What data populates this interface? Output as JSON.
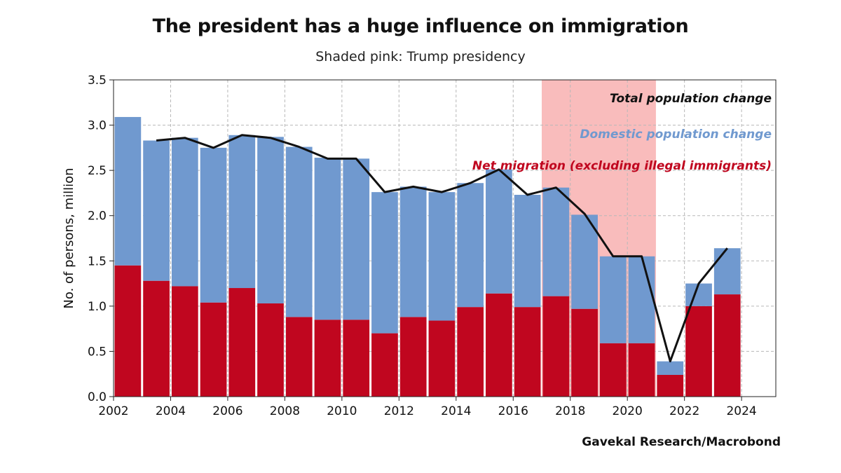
{
  "header": {
    "title": "The president has a huge influence on immigration",
    "subtitle": "Shaded pink: Trump presidency",
    "source": "Gavekal Research/Macrobond"
  },
  "colors": {
    "domestic": "#7099cf",
    "migration": "#c0061f",
    "total": "#111111",
    "shade": "#f9bcbc",
    "grid": "#b8b8b8"
  },
  "chart_data": {
    "type": "bar",
    "title": "The president has a huge influence on immigration",
    "subtitle": "Shaded pink: Trump presidency",
    "xlabel": "",
    "ylabel": "No. of persons, million",
    "ylim": [
      0,
      3.5
    ],
    "xlim": [
      2002,
      2025.2
    ],
    "grid": true,
    "x_ticks": [
      "2002",
      "2004",
      "2006",
      "2008",
      "2010",
      "2012",
      "2014",
      "2016",
      "2018",
      "2020",
      "2022",
      "2024"
    ],
    "y_ticks": [
      "0.0",
      "0.5",
      "1.0",
      "1.5",
      "2.0",
      "2.5",
      "3.0",
      "3.5"
    ],
    "shaded_region": {
      "label": "Trump presidency",
      "x_start": 2017,
      "x_end": 2021
    },
    "categories": [
      "2002",
      "2003",
      "2004",
      "2005",
      "2006",
      "2007",
      "2008",
      "2009",
      "2010",
      "2011",
      "2012",
      "2013",
      "2014",
      "2015",
      "2016",
      "2017",
      "2018",
      "2019",
      "2020",
      "2021",
      "2022",
      "2023"
    ],
    "series": [
      {
        "name": "Net migration (excluding illegal immigrants)",
        "kind": "bar-segment",
        "values": [
          1.45,
          1.28,
          1.22,
          1.04,
          1.2,
          1.03,
          0.88,
          0.85,
          0.85,
          0.7,
          0.88,
          0.84,
          0.99,
          1.14,
          0.99,
          1.11,
          0.97,
          0.59,
          0.59,
          0.24,
          1.0,
          1.13
        ]
      },
      {
        "name": "Domestic population change",
        "kind": "bar-segment",
        "values": [
          1.64,
          1.55,
          1.64,
          1.71,
          1.69,
          1.84,
          1.88,
          1.79,
          1.78,
          1.56,
          1.44,
          1.42,
          1.37,
          1.37,
          1.24,
          1.2,
          1.04,
          0.96,
          0.96,
          0.15,
          0.25,
          0.51
        ]
      },
      {
        "name": "Total population change",
        "kind": "line",
        "values": [
          null,
          2.83,
          2.86,
          2.75,
          2.89,
          2.86,
          2.76,
          2.63,
          2.63,
          2.26,
          2.32,
          2.26,
          2.36,
          2.51,
          2.23,
          2.31,
          2.02,
          1.55,
          1.55,
          0.39,
          1.25,
          1.64
        ]
      }
    ],
    "legend": [
      {
        "label": "Total population change",
        "color": "#111111"
      },
      {
        "label": "Domestic population change",
        "color": "#7099cf"
      },
      {
        "label": "Net migration (excluding illegal immigrants)",
        "color": "#c0061f"
      }
    ],
    "legend_position": "top-right"
  }
}
